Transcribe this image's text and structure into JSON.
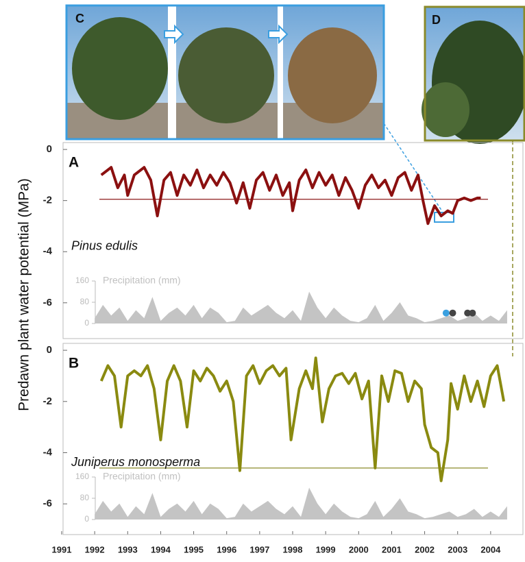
{
  "y_label": "Predawn plant water potential (MPa)",
  "photo_labels": [
    "C",
    "D"
  ],
  "chart_data": [
    {
      "type": "line",
      "panel": "A",
      "species": "Pinus edulis",
      "xlim": [
        1991,
        2005
      ],
      "ylim": [
        -7.4,
        0.27
      ],
      "yticks": [
        0,
        -2,
        -4,
        -6
      ],
      "xticks": [
        1991,
        1992,
        1993,
        1994,
        1995,
        1996,
        1997,
        1998,
        1999,
        2000,
        2001,
        2002,
        2003,
        2004
      ],
      "threshold": -1.95,
      "threshold_color": "#8b1a1a",
      "series": [
        {
          "color": "#8b1010",
          "x": [
            1992.2,
            1992.5,
            1992.7,
            1992.9,
            1993.0,
            1993.2,
            1993.5,
            1993.7,
            1993.9,
            1994.1,
            1994.3,
            1994.5,
            1994.7,
            1994.9,
            1995.1,
            1995.3,
            1995.5,
            1995.7,
            1995.9,
            1996.1,
            1996.3,
            1996.5,
            1996.7,
            1996.9,
            1997.1,
            1997.3,
            1997.5,
            1997.7,
            1997.9,
            1998.0,
            1998.2,
            1998.4,
            1998.6,
            1998.8,
            1999.0,
            1999.2,
            1999.4,
            1999.6,
            1999.8,
            2000.0,
            2000.2,
            2000.4,
            2000.6,
            2000.8,
            2001.0,
            2001.2,
            2001.4,
            2001.6,
            2001.8,
            2001.95,
            2002.1,
            2002.3,
            2002.5,
            2002.7,
            2002.85,
            2003.0,
            2003.2,
            2003.4,
            2003.6,
            2003.7
          ],
          "values": [
            -1.0,
            -0.7,
            -1.5,
            -1.0,
            -1.8,
            -1.0,
            -0.7,
            -1.2,
            -2.6,
            -1.2,
            -0.9,
            -1.8,
            -1.0,
            -1.4,
            -0.8,
            -1.5,
            -1.0,
            -1.4,
            -0.9,
            -1.3,
            -2.1,
            -1.3,
            -2.3,
            -1.2,
            -0.9,
            -1.6,
            -1.0,
            -1.8,
            -1.3,
            -2.4,
            -1.2,
            -0.8,
            -1.5,
            -0.9,
            -1.4,
            -1.0,
            -1.8,
            -1.1,
            -1.6,
            -2.3,
            -1.4,
            -1.0,
            -1.5,
            -1.2,
            -1.8,
            -1.1,
            -0.9,
            -1.6,
            -1.0,
            -2.0,
            -2.9,
            -2.2,
            -2.6,
            -2.4,
            -2.5,
            -2.0,
            -1.9,
            -2.0,
            -1.9,
            -1.9
          ]
        }
      ],
      "mortality": {
        "x": [
          2002.65,
          2002.85,
          2003.3,
          2003.45
        ],
        "y": [
          -6.4,
          -6.4,
          -6.4,
          -6.4
        ],
        "colors": [
          "#3aa0e0",
          "#444444",
          "#444444",
          "#444444"
        ]
      },
      "precipitation": {
        "label": "Precipitation (mm)",
        "ylim": [
          0,
          160
        ],
        "yticks": [
          0,
          80,
          160
        ],
        "color": "#c4c4c4",
        "x": [
          1992.0,
          1992.25,
          1992.5,
          1992.75,
          1993.0,
          1993.25,
          1993.5,
          1993.75,
          1994.0,
          1994.25,
          1994.5,
          1994.75,
          1995.0,
          1995.25,
          1995.5,
          1995.75,
          1996.0,
          1996.25,
          1996.5,
          1996.75,
          1997.0,
          1997.25,
          1997.5,
          1997.75,
          1998.0,
          1998.25,
          1998.5,
          1998.75,
          1999.0,
          1999.25,
          1999.5,
          1999.75,
          2000.0,
          2000.25,
          2000.5,
          2000.75,
          2001.0,
          2001.25,
          2001.5,
          2001.75,
          2002.0,
          2002.25,
          2002.5,
          2002.75,
          2003.0,
          2003.25,
          2003.5,
          2003.75,
          2004.0,
          2004.25,
          2004.5
        ],
        "values": [
          20,
          70,
          30,
          60,
          10,
          50,
          20,
          100,
          10,
          40,
          60,
          30,
          70,
          20,
          60,
          40,
          5,
          10,
          60,
          30,
          50,
          70,
          40,
          20,
          50,
          10,
          120,
          60,
          20,
          60,
          30,
          10,
          5,
          20,
          70,
          10,
          40,
          80,
          30,
          20,
          5,
          10,
          20,
          30,
          10,
          20,
          40,
          10,
          30,
          10,
          50
        ]
      }
    },
    {
      "type": "line",
      "panel": "B",
      "species": "Juniperus monosperma",
      "xlim": [
        1991,
        2005
      ],
      "ylim": [
        -7.2,
        0.27
      ],
      "yticks": [
        0,
        -2,
        -4,
        -6
      ],
      "threshold": -4.6,
      "threshold_color": "#8a8a2a",
      "series": [
        {
          "color": "#8a8a10",
          "x": [
            1992.2,
            1992.4,
            1992.6,
            1992.8,
            1993.0,
            1993.2,
            1993.4,
            1993.6,
            1993.8,
            1994.0,
            1994.2,
            1994.4,
            1994.6,
            1994.8,
            1995.0,
            1995.2,
            1995.4,
            1995.6,
            1995.8,
            1996.0,
            1996.2,
            1996.4,
            1996.6,
            1996.8,
            1997.0,
            1997.2,
            1997.4,
            1997.6,
            1997.8,
            1997.95,
            1998.2,
            1998.4,
            1998.6,
            1998.7,
            1998.9,
            1999.1,
            1999.3,
            1999.5,
            1999.7,
            1999.9,
            2000.1,
            2000.3,
            2000.5,
            2000.7,
            2000.9,
            2001.1,
            2001.3,
            2001.5,
            2001.7,
            2001.9,
            2002.0,
            2002.2,
            2002.4,
            2002.5,
            2002.7,
            2002.8,
            2003.0,
            2003.2,
            2003.4,
            2003.6,
            2003.8,
            2004.0,
            2004.2,
            2004.4
          ],
          "values": [
            -1.2,
            -0.6,
            -1.0,
            -3.0,
            -1.0,
            -0.8,
            -1.0,
            -0.6,
            -1.5,
            -3.5,
            -1.2,
            -0.6,
            -1.2,
            -3.0,
            -0.8,
            -1.2,
            -0.7,
            -1.0,
            -1.6,
            -1.2,
            -2.0,
            -4.7,
            -1.0,
            -0.6,
            -1.3,
            -0.8,
            -0.6,
            -1.0,
            -0.7,
            -3.5,
            -1.5,
            -0.8,
            -1.5,
            -0.3,
            -2.8,
            -1.5,
            -1.0,
            -0.9,
            -1.3,
            -0.9,
            -1.9,
            -1.2,
            -4.6,
            -1.0,
            -2.0,
            -0.8,
            -0.9,
            -2.0,
            -1.2,
            -1.5,
            -2.9,
            -3.8,
            -4.0,
            -5.1,
            -3.5,
            -1.3,
            -2.3,
            -1.0,
            -2.0,
            -1.2,
            -2.2,
            -1.0,
            -0.6,
            -2.0
          ]
        }
      ],
      "precipitation": {
        "label": "Precipitation (mm)",
        "ylim": [
          0,
          160
        ],
        "yticks": [
          0,
          80,
          160
        ],
        "color": "#c4c4c4",
        "x": [
          1992.0,
          1992.25,
          1992.5,
          1992.75,
          1993.0,
          1993.25,
          1993.5,
          1993.75,
          1994.0,
          1994.25,
          1994.5,
          1994.75,
          1995.0,
          1995.25,
          1995.5,
          1995.75,
          1996.0,
          1996.25,
          1996.5,
          1996.75,
          1997.0,
          1997.25,
          1997.5,
          1997.75,
          1998.0,
          1998.25,
          1998.5,
          1998.75,
          1999.0,
          1999.25,
          1999.5,
          1999.75,
          2000.0,
          2000.25,
          2000.5,
          2000.75,
          2001.0,
          2001.25,
          2001.5,
          2001.75,
          2002.0,
          2002.25,
          2002.5,
          2002.75,
          2003.0,
          2003.25,
          2003.5,
          2003.75,
          2004.0,
          2004.25,
          2004.5
        ],
        "values": [
          20,
          70,
          30,
          60,
          10,
          50,
          20,
          100,
          10,
          40,
          60,
          30,
          70,
          20,
          60,
          40,
          5,
          10,
          60,
          30,
          50,
          70,
          40,
          20,
          50,
          10,
          120,
          60,
          20,
          60,
          30,
          10,
          5,
          20,
          70,
          10,
          40,
          80,
          30,
          20,
          5,
          10,
          20,
          30,
          10,
          20,
          40,
          10,
          30,
          10,
          50
        ]
      }
    }
  ]
}
